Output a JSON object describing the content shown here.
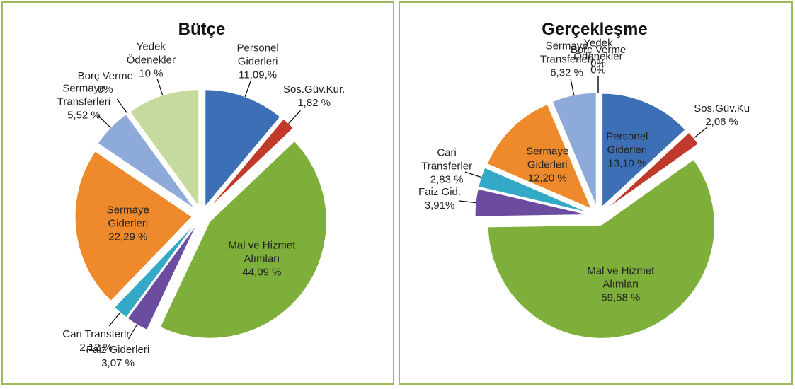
{
  "chart_data": [
    {
      "type": "pie",
      "title": "Bütçe",
      "categories": [
        "Personel Giderleri",
        "Sos.Güv.Kur.",
        "Mal ve Hizmet Alımları",
        "Faiz Giderleri",
        "Cari Transferlr",
        "Sermaye Giderleri",
        "Sermaye Transferleri",
        "Borç Verme",
        "Yedek Ödenekler"
      ],
      "values": [
        11.09,
        1.82,
        44.09,
        3.07,
        2.12,
        22.29,
        5.52,
        0,
        10
      ],
      "value_labels": [
        "11,09,%",
        "1,82 %",
        "44,09 %",
        "3,07 %",
        "2,12 %",
        "22,29 %",
        "5,52 %",
        "0%",
        "10 %"
      ],
      "colors": [
        "#3d6fb6",
        "#c0392b",
        "#7faf3b",
        "#6b4c9e",
        "#33a8c7",
        "#ee8a2b",
        "#8eaadb",
        "#b7c9e6",
        "#c5da9c"
      ]
    },
    {
      "type": "pie",
      "title": "Gerçekleşme",
      "categories": [
        "Personel Giderleri",
        "Sos.Güv.Ku",
        "Mal ve Hizmet Alımları",
        "Faiz Gid.",
        "Cari Transferler",
        "Sermaye Giderleri",
        "Sermaye Transferleri",
        "Borç Verme",
        "Yedek Ödenekler"
      ],
      "values": [
        13.1,
        2.06,
        59.58,
        3.91,
        2.83,
        12.2,
        6.32,
        0,
        0
      ],
      "value_labels": [
        "13,10 %",
        "2,06 %",
        "59,58 %",
        "3,91%",
        "2,83 %",
        "12,20 %",
        "6,32 %",
        "0%",
        "0%"
      ],
      "colors": [
        "#3d6fb6",
        "#c0392b",
        "#7faf3b",
        "#6b4c9e",
        "#33a8c7",
        "#ee8a2b",
        "#8eaadb",
        "#b7c9e6",
        "#c5da9c"
      ]
    }
  ]
}
